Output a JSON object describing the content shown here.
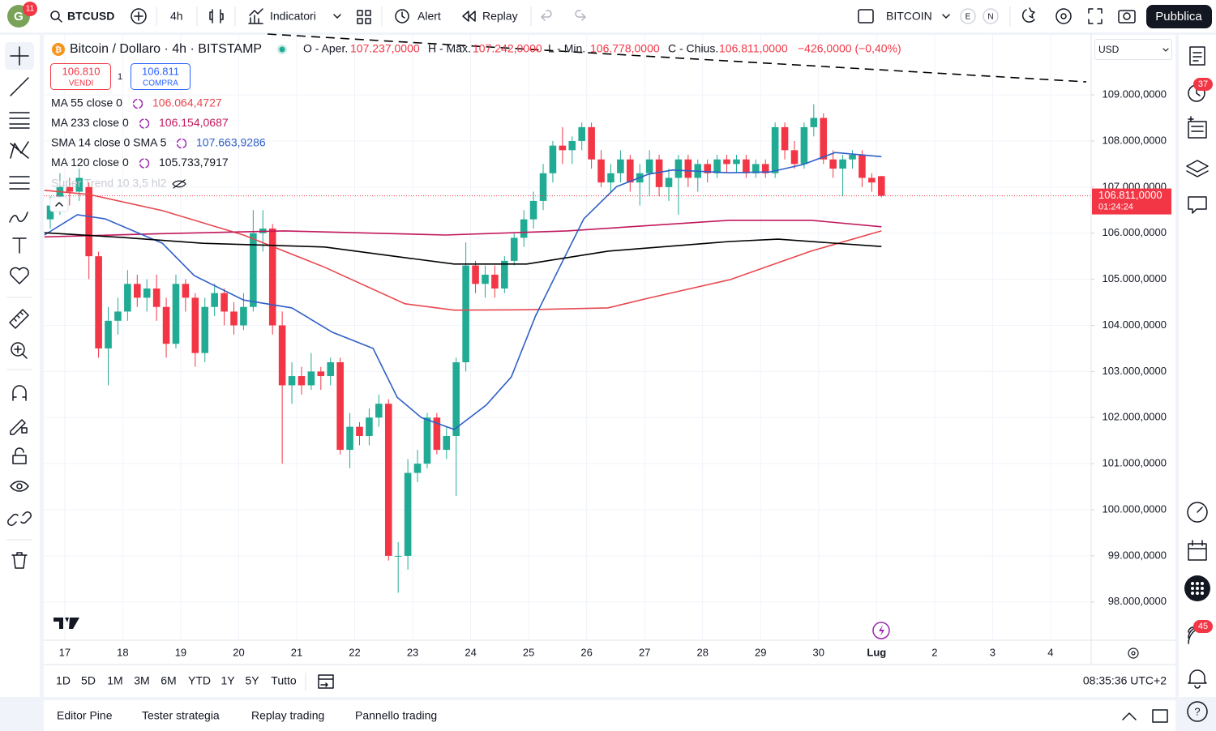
{
  "toolbar": {
    "badge": "11",
    "symbol": "BTCUSD",
    "interval": "4h",
    "indicators": "Indicatori",
    "alert": "Alert",
    "replay": "Replay",
    "watchlist": "BITCOIN",
    "e": "E",
    "n": "N",
    "publish": "Pubblica"
  },
  "legend": {
    "title": "Bitcoin / Dollaro · 4h · BITSTAMP",
    "open_label": "O - Aper.",
    "open": "107.237,0000",
    "high_label": "H - Max.",
    "high": "107.242,0000",
    "low_label": "L - Min.",
    "low": "106.778,0000",
    "close_label": "C - Chius.",
    "close": "106.811,0000",
    "change": "−426,0000 (−0,40%)",
    "sell_price": "106.810",
    "sell": "VENDI",
    "spread": "1",
    "buy_price": "106.811",
    "buy": "COMPRA",
    "indicator_values": [
      "106.064,4727",
      "106.154,0687",
      "107.663,9286",
      "105.733,7917"
    ],
    "supertrend": "Super Trend 10 3,5 hl2"
  },
  "currency": "USD",
  "chart_data": {
    "type": "candlestick",
    "up_color": "#22ab94",
    "down_color": "#f23645",
    "xlim": [
      -0.67,
      107.7
    ],
    "ylim": [
      97170,
      110320
    ],
    "grid": true,
    "yticks": [
      {
        "value": 109000,
        "label": "109.000,0000"
      },
      {
        "value": 108000,
        "label": "108.000,0000"
      },
      {
        "value": 107000,
        "label": "107.000,0000"
      },
      {
        "value": 106000,
        "label": "106.000,0000"
      },
      {
        "value": 105000,
        "label": "105.000,0000"
      },
      {
        "value": 104000,
        "label": "104.000,0000"
      },
      {
        "value": 103000,
        "label": "103.000,0000"
      },
      {
        "value": 102000,
        "label": "102.000,0000"
      },
      {
        "value": 101000,
        "label": "101.000,0000"
      },
      {
        "value": 100000,
        "label": "100.000,0000"
      },
      {
        "value": 99000,
        "label": "99.000,0000"
      },
      {
        "value": 98000,
        "label": "98.000,0000"
      }
    ],
    "xticks": [
      {
        "value": 1.5,
        "label": "17"
      },
      {
        "value": 7.5,
        "label": "18"
      },
      {
        "value": 13.5,
        "label": "19"
      },
      {
        "value": 19.5,
        "label": "20"
      },
      {
        "value": 25.5,
        "label": "21"
      },
      {
        "value": 31.5,
        "label": "22"
      },
      {
        "value": 37.5,
        "label": "23"
      },
      {
        "value": 43.5,
        "label": "24"
      },
      {
        "value": 49.5,
        "label": "25"
      },
      {
        "value": 55.5,
        "label": "26"
      },
      {
        "value": 61.5,
        "label": "27"
      },
      {
        "value": 67.5,
        "label": "28"
      },
      {
        "value": 73.5,
        "label": "29"
      },
      {
        "value": 79.5,
        "label": "30"
      },
      {
        "value": 85.5,
        "label": "Lug"
      },
      {
        "value": 91.5,
        "label": "2"
      },
      {
        "value": 97.5,
        "label": "3"
      },
      {
        "value": 103.5,
        "label": "4"
      }
    ],
    "last_price": 106811,
    "last_price_label": "106.811,0000",
    "countdown": "01:24:24",
    "ohlc": [
      [
        106300,
        106800,
        106100,
        106600
      ],
      [
        106600,
        107300,
        106400,
        107000
      ],
      [
        107000,
        107200,
        106600,
        106900
      ],
      [
        106900,
        107400,
        106700,
        107200
      ],
      [
        107000,
        107100,
        105000,
        105500
      ],
      [
        105500,
        105600,
        103300,
        103500
      ],
      [
        103500,
        104400,
        102700,
        104100
      ],
      [
        104100,
        104600,
        103800,
        104300
      ],
      [
        104300,
        105200,
        104100,
        104900
      ],
      [
        104900,
        105100,
        104400,
        104600
      ],
      [
        104600,
        105000,
        104300,
        104800
      ],
      [
        104800,
        105100,
        104100,
        104400
      ],
      [
        104400,
        104600,
        103300,
        103600
      ],
      [
        103600,
        105100,
        103500,
        104900
      ],
      [
        104900,
        105000,
        104300,
        104600
      ],
      [
        104600,
        104700,
        103100,
        103400
      ],
      [
        103400,
        104600,
        103200,
        104400
      ],
      [
        104400,
        104900,
        104200,
        104700
      ],
      [
        104700,
        104800,
        104000,
        104300
      ],
      [
        104300,
        104500,
        103800,
        104000
      ],
      [
        104000,
        104700,
        103900,
        104400
      ],
      [
        104400,
        106500,
        104300,
        106000
      ],
      [
        106000,
        106500,
        105600,
        106100
      ],
      [
        106100,
        106200,
        103800,
        104000
      ],
      [
        104000,
        104300,
        101000,
        102700
      ],
      [
        102700,
        103200,
        102300,
        102900
      ],
      [
        102900,
        103100,
        102500,
        102700
      ],
      [
        102700,
        103400,
        102600,
        103000
      ],
      [
        103000,
        103100,
        102600,
        102900
      ],
      [
        102900,
        103300,
        102700,
        103200
      ],
      [
        103200,
        103300,
        101200,
        101300
      ],
      [
        101300,
        102100,
        100900,
        101800
      ],
      [
        101800,
        101900,
        101400,
        101600
      ],
      [
        101600,
        102200,
        101400,
        102000
      ],
      [
        102000,
        102500,
        101800,
        102300
      ],
      [
        102300,
        102400,
        98900,
        99000
      ],
      [
        99000,
        99300,
        98200,
        99000
      ],
      [
        99000,
        101100,
        98700,
        100800
      ],
      [
        100800,
        101300,
        100600,
        101000
      ],
      [
        101000,
        102100,
        100900,
        102000
      ],
      [
        102000,
        102100,
        101200,
        101300
      ],
      [
        101300,
        101800,
        101100,
        101600
      ],
      [
        101600,
        103300,
        100300,
        103200
      ],
      [
        103200,
        105800,
        103000,
        105300
      ],
      [
        105300,
        105400,
        104700,
        104900
      ],
      [
        104900,
        105300,
        104600,
        105100
      ],
      [
        105100,
        105300,
        104600,
        104800
      ],
      [
        104800,
        105500,
        104700,
        105400
      ],
      [
        105400,
        106000,
        105300,
        105900
      ],
      [
        105900,
        106500,
        105700,
        106300
      ],
      [
        106300,
        106900,
        106100,
        106700
      ],
      [
        106700,
        107500,
        106500,
        107300
      ],
      [
        107300,
        108000,
        107100,
        107900
      ],
      [
        107900,
        108300,
        107500,
        107800
      ],
      [
        107800,
        108100,
        107500,
        108000
      ],
      [
        108000,
        108400,
        107800,
        108300
      ],
      [
        108300,
        108400,
        107400,
        107600
      ],
      [
        107600,
        107800,
        107000,
        107100
      ],
      [
        107100,
        107500,
        106900,
        107300
      ],
      [
        107300,
        107800,
        107100,
        107600
      ],
      [
        107600,
        107700,
        106900,
        107100
      ],
      [
        107100,
        107500,
        106600,
        107300
      ],
      [
        107300,
        107800,
        106800,
        107600
      ],
      [
        107600,
        107700,
        106800,
        107000
      ],
      [
        107000,
        107400,
        106700,
        107200
      ],
      [
        107200,
        107700,
        106400,
        107600
      ],
      [
        107600,
        107700,
        107000,
        107200
      ],
      [
        107200,
        107600,
        106900,
        107500
      ],
      [
        107500,
        107600,
        107100,
        107300
      ],
      [
        107300,
        107700,
        107200,
        107600
      ],
      [
        107600,
        107700,
        107300,
        107500
      ],
      [
        107500,
        107700,
        107300,
        107600
      ],
      [
        107600,
        107700,
        107200,
        107300
      ],
      [
        107300,
        107600,
        107200,
        107500
      ],
      [
        107500,
        107600,
        107200,
        107300
      ],
      [
        107300,
        108400,
        107200,
        108300
      ],
      [
        108300,
        108400,
        107600,
        107800
      ],
      [
        107800,
        108000,
        107400,
        107500
      ],
      [
        107500,
        108400,
        107400,
        108300
      ],
      [
        108300,
        108800,
        108100,
        108500
      ],
      [
        108500,
        108600,
        107500,
        107600
      ],
      [
        107600,
        107800,
        107200,
        107400
      ],
      [
        107400,
        107700,
        106800,
        107600
      ],
      [
        107600,
        107800,
        107400,
        107700
      ],
      [
        107700,
        107800,
        107000,
        107200
      ],
      [
        107200,
        107300,
        106900,
        107100
      ],
      [
        107237,
        107242,
        106778,
        106811
      ]
    ],
    "series": [
      {
        "name": "MA 55 close 0",
        "color": "#e8474e",
        "x": [
          -0.6,
          4.0,
          11.6,
          20.0,
          28.4,
          36.7,
          41.8,
          49.3,
          57.7,
          61.9,
          70.3,
          78.7,
          86.0
        ],
        "values": [
          106930,
          106840,
          106490,
          105960,
          105260,
          104470,
          104330,
          104340,
          104380,
          104590,
          104990,
          105610,
          106050
        ]
      },
      {
        "name": "MA 233 close 0",
        "color": "#c2185b",
        "x": [
          -0.6,
          11.6,
          24.2,
          40.9,
          53.5,
          70.3,
          78.7,
          86.0
        ],
        "values": [
          105920,
          105990,
          106050,
          105960,
          106050,
          106280,
          106280,
          106140
        ]
      },
      {
        "name": "SMA 14 close 0 SMA 5",
        "color": "#2f5fc8",
        "x": [
          -0.6,
          2.8,
          5.7,
          11.6,
          14.9,
          20.0,
          25.0,
          29.2,
          33.4,
          35.9,
          38.4,
          41.8,
          45.1,
          47.7,
          50.2,
          52.7,
          55.2,
          58.6,
          61.9,
          64.4,
          70.3,
          74.5,
          77.9,
          81.2,
          86.0
        ],
        "values": [
          105960,
          106400,
          106310,
          105780,
          105080,
          104550,
          104380,
          103850,
          103500,
          102440,
          102000,
          101740,
          102270,
          102880,
          104200,
          105260,
          106310,
          107010,
          107280,
          107370,
          107310,
          107330,
          107490,
          107750,
          107660
        ]
      },
      {
        "name": "MA 120 close 0",
        "color": "#000000",
        "x": [
          -0.6,
          7.4,
          15.8,
          28.4,
          36.7,
          41.8,
          49.3,
          57.7,
          70.3,
          75.3,
          86.0
        ],
        "values": [
          106010,
          105910,
          105780,
          105700,
          105470,
          105330,
          105330,
          105610,
          105820,
          105870,
          105710
        ]
      }
    ]
  },
  "ranges": [
    "1D",
    "5D",
    "1M",
    "3M",
    "6M",
    "YTD",
    "1Y",
    "5Y",
    "Tutto"
  ],
  "clock": "08:35:36 UTC+2",
  "tabs": [
    "Editor Pine",
    "Tester strategia",
    "Replay trading",
    "Pannello trading"
  ],
  "badges": {
    "alerts": "37",
    "notifications": "45"
  }
}
